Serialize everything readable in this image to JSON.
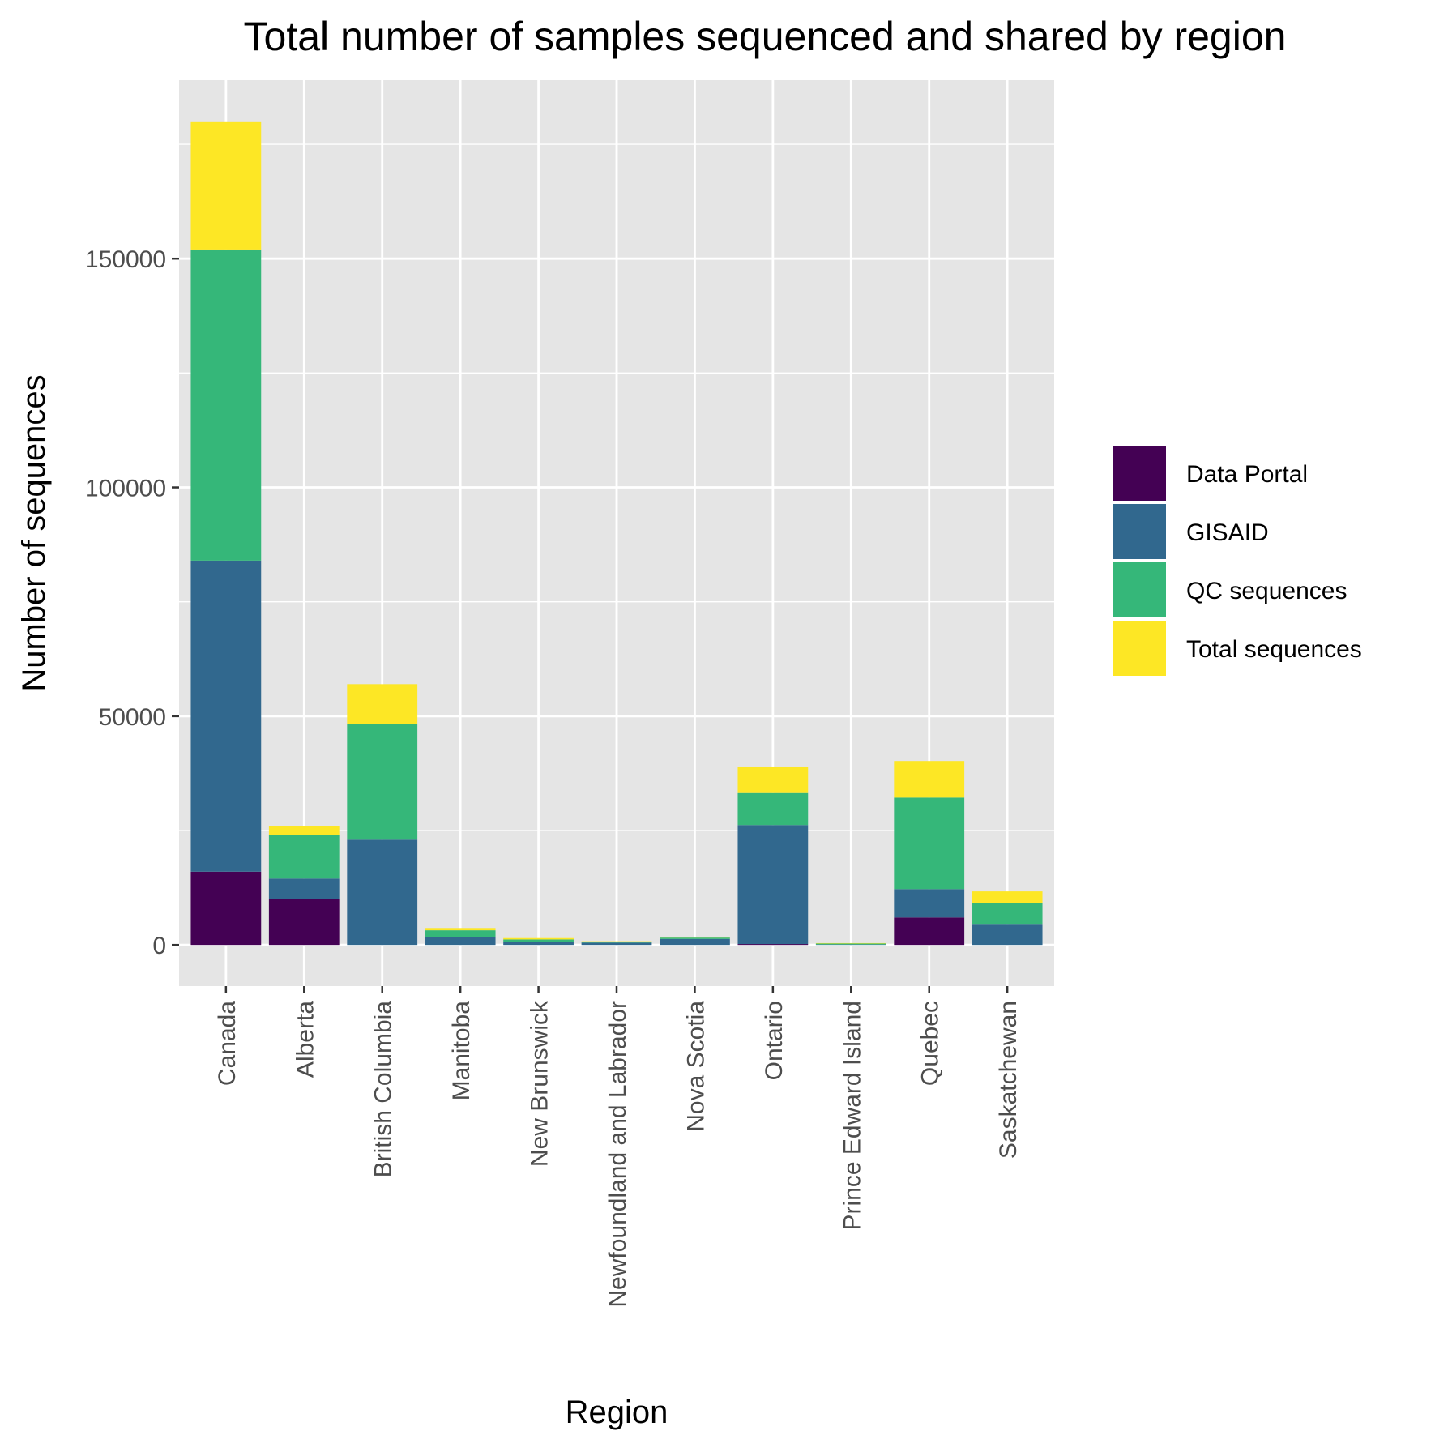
{
  "chart_data": {
    "type": "bar",
    "stacked": true,
    "title": "Total number of samples sequenced and shared by region",
    "xlabel": "Region",
    "ylabel": "Number of sequences",
    "ylim": [
      -9000,
      189000
    ],
    "yticks": [
      0,
      50000,
      100000,
      150000
    ],
    "grid": true,
    "legend_position": "right",
    "categories": [
      "Canada",
      "Alberta",
      "British Columbia",
      "Manitoba",
      "New Brunswick",
      "Newfoundland and Labrador",
      "Nova Scotia",
      "Ontario",
      "Prince Edward Island",
      "Quebec",
      "Saskatchewan"
    ],
    "series": [
      {
        "name": "Data Portal",
        "color": "#440154",
        "values": [
          16000,
          10000,
          0,
          0,
          0,
          0,
          0,
          200,
          0,
          6000,
          0
        ]
      },
      {
        "name": "GISAID",
        "color": "#31688E",
        "values": [
          68000,
          4500,
          23000,
          1700,
          700,
          500,
          1300,
          26000,
          100,
          6200,
          4600
        ]
      },
      {
        "name": "QC sequences",
        "color": "#35B779",
        "values": [
          68000,
          9500,
          25300,
          1500,
          500,
          200,
          300,
          7000,
          200,
          20000,
          4600
        ]
      },
      {
        "name": "Total sequences",
        "color": "#FDE725",
        "values": [
          28000,
          2000,
          8700,
          500,
          300,
          100,
          200,
          5800,
          100,
          8000,
          2500
        ]
      }
    ]
  }
}
